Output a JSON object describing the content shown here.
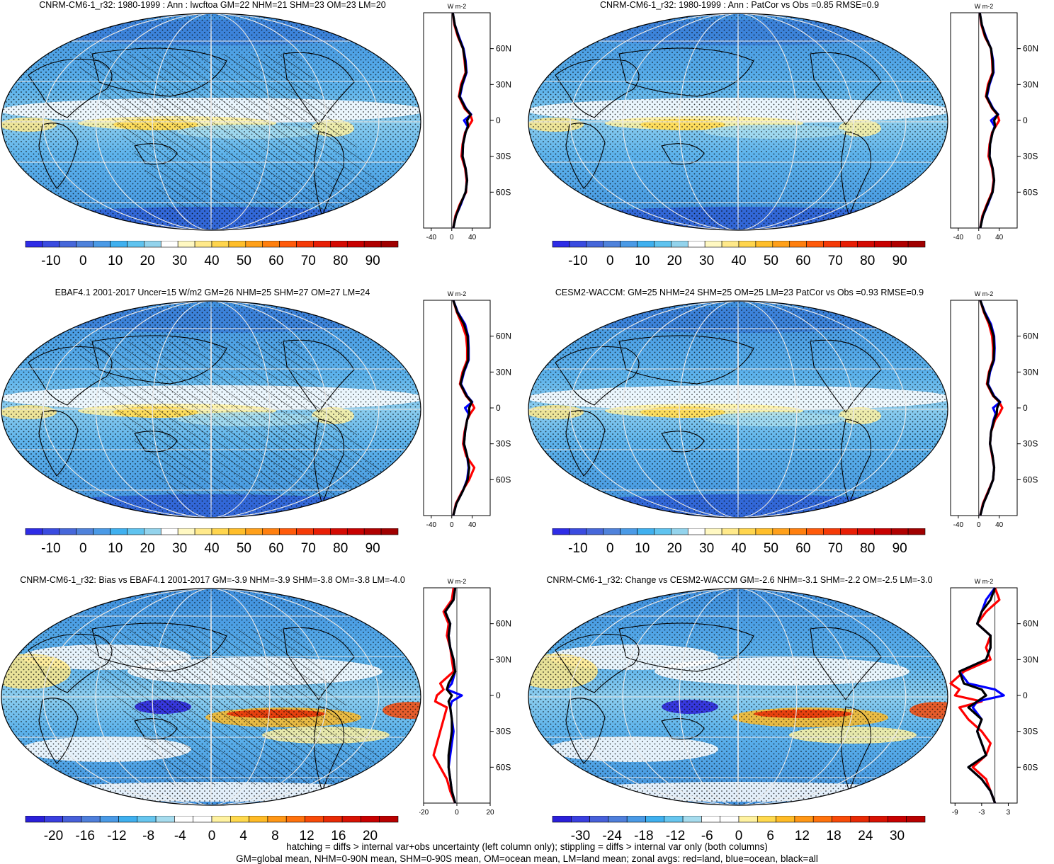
{
  "footer": {
    "line1": "hatching = diffs > internal var+obs uncertainty (left column only); stippling = diffs > internal var only (both columns)",
    "line2": "GM=global mean, NHM=0-90N mean, SHM=0-90S mean, OM=ocean mean, LM=land mean; zonal avgs: red=land, blue=ocean, black=all"
  },
  "colors": {
    "land": "#ff0000",
    "ocean": "#0000ff",
    "all": "#000000"
  },
  "chart_data": [
    {
      "type": "heatmap",
      "title": "CNRM-CM6-1_r32: 1980-1999 : Ann : lwcftoa GM=22 NHM=21 SHM=23 OM=23 LM=20",
      "colorbar_ticks": [
        "-10",
        "0",
        "10",
        "20",
        "30",
        "40",
        "50",
        "60",
        "70",
        "80",
        "90"
      ],
      "zonal_unit": "W m-2",
      "zonal_xticks": [
        "-40",
        "0",
        "40"
      ],
      "zonal_xlim": [
        -55,
        75
      ],
      "zonal_yticks": [
        "60N",
        "30N",
        "0",
        "30S",
        "60S"
      ],
      "hatching": true,
      "zonal_lat": [
        90,
        80,
        70,
        60,
        50,
        40,
        30,
        20,
        10,
        5,
        0,
        -5,
        -10,
        -20,
        -30,
        -40,
        -50,
        -60,
        -70,
        -80,
        -90
      ],
      "zonal_land": [
        2,
        5,
        12,
        22,
        25,
        27,
        18,
        14,
        25,
        36,
        40,
        33,
        26,
        21,
        19,
        26,
        29,
        28,
        16,
        7,
        3
      ],
      "zonal_ocean": [
        2,
        6,
        14,
        23,
        27,
        29,
        21,
        16,
        28,
        38,
        24,
        31,
        27,
        22,
        21,
        27,
        30,
        27,
        18,
        8,
        3
      ],
      "zonal_all": [
        2,
        6,
        13,
        22,
        26,
        28,
        20,
        15,
        27,
        37,
        30,
        32,
        27,
        22,
        21,
        27,
        30,
        27,
        17,
        8,
        3
      ]
    },
    {
      "type": "heatmap",
      "title": "CNRM-CM6-1_r32: 1980-1999 : Ann : PatCor vs Obs =0.85 RMSE=0.9",
      "colorbar_ticks": [
        "-10",
        "0",
        "10",
        "20",
        "30",
        "40",
        "50",
        "60",
        "70",
        "80",
        "90"
      ],
      "zonal_unit": "W m-2",
      "zonal_xticks": [
        "-40",
        "0",
        "40"
      ],
      "zonal_xlim": [
        -55,
        75
      ],
      "zonal_yticks": [
        "60N",
        "30N",
        "0",
        "30S",
        "60S"
      ],
      "hatching": false,
      "zonal_lat": [
        90,
        80,
        70,
        60,
        50,
        40,
        30,
        20,
        10,
        5,
        0,
        -5,
        -10,
        -20,
        -30,
        -40,
        -50,
        -60,
        -70,
        -80,
        -90
      ],
      "zonal_land": [
        2,
        5,
        12,
        24,
        26,
        27,
        18,
        14,
        26,
        36,
        40,
        33,
        26,
        21,
        19,
        26,
        29,
        26,
        16,
        7,
        3
      ],
      "zonal_ocean": [
        2,
        6,
        14,
        24,
        28,
        29,
        21,
        16,
        28,
        38,
        24,
        31,
        27,
        22,
        21,
        27,
        30,
        27,
        18,
        8,
        3
      ],
      "zonal_all": [
        2,
        6,
        13,
        24,
        27,
        28,
        20,
        15,
        27,
        37,
        30,
        32,
        27,
        22,
        21,
        27,
        30,
        27,
        17,
        8,
        3
      ]
    },
    {
      "type": "heatmap",
      "title": "EBAF4.1 2001-2017 Uncer=15 W/m2 GM=26 NHM=25 SHM=27 OM=27 LM=24",
      "colorbar_ticks": [
        "-10",
        "0",
        "10",
        "20",
        "30",
        "40",
        "50",
        "60",
        "70",
        "80",
        "90"
      ],
      "zonal_unit": "W m-2",
      "zonal_xticks": [
        "-40",
        "0",
        "40"
      ],
      "zonal_xlim": [
        -55,
        75
      ],
      "zonal_yticks": [
        "60N",
        "30N",
        "0",
        "30S",
        "60S"
      ],
      "hatching": true,
      "zonal_lat": [
        90,
        80,
        70,
        60,
        50,
        40,
        30,
        20,
        10,
        5,
        0,
        -5,
        -10,
        -20,
        -30,
        -40,
        -50,
        -60,
        -70,
        -80,
        -90
      ],
      "zonal_land": [
        3,
        10,
        20,
        28,
        30,
        30,
        21,
        16,
        28,
        38,
        44,
        36,
        30,
        25,
        22,
        28,
        44,
        34,
        20,
        8,
        3
      ],
      "zonal_ocean": [
        3,
        12,
        26,
        32,
        33,
        33,
        24,
        18,
        30,
        40,
        26,
        33,
        30,
        26,
        24,
        30,
        33,
        30,
        21,
        9,
        3
      ],
      "zonal_all": [
        3,
        11,
        24,
        31,
        32,
        32,
        23,
        17,
        29,
        39,
        34,
        34,
        30,
        26,
        24,
        30,
        34,
        31,
        21,
        9,
        3
      ]
    },
    {
      "type": "heatmap",
      "title": "CESM2-WACCM: GM=25 NHM=24 SHM=25 OM=25 LM=23 PatCor vs Obs =0.93 RMSE=0.9",
      "colorbar_ticks": [
        "-10",
        "0",
        "10",
        "20",
        "30",
        "40",
        "50",
        "60",
        "70",
        "80",
        "90"
      ],
      "zonal_unit": "W m-2",
      "zonal_xticks": [
        "-40",
        "0",
        "40"
      ],
      "zonal_xlim": [
        -55,
        75
      ],
      "zonal_yticks": [
        "60N",
        "30N",
        "0",
        "30S",
        "60S"
      ],
      "hatching": false,
      "zonal_lat": [
        90,
        80,
        70,
        60,
        50,
        40,
        30,
        20,
        10,
        5,
        0,
        -5,
        -10,
        -20,
        -30,
        -40,
        -50,
        -60,
        -70,
        -80,
        -90
      ],
      "zonal_land": [
        3,
        10,
        20,
        26,
        28,
        28,
        20,
        16,
        28,
        40,
        46,
        40,
        32,
        24,
        22,
        26,
        30,
        28,
        18,
        8,
        3
      ],
      "zonal_ocean": [
        3,
        12,
        24,
        30,
        31,
        30,
        22,
        18,
        30,
        42,
        28,
        33,
        29,
        24,
        22,
        27,
        30,
        28,
        19,
        9,
        3
      ],
      "zonal_all": [
        3,
        11,
        22,
        29,
        30,
        29,
        21,
        17,
        29,
        41,
        36,
        35,
        30,
        24,
        22,
        27,
        30,
        28,
        19,
        9,
        3
      ]
    },
    {
      "type": "heatmap",
      "title": "CNRM-CM6-1_r32: Bias vs EBAF4.1 2001-2017 GM=-3.9 NHM=-3.9 SHM=-3.8 OM=-3.8 LM=-4.0",
      "colorbar_ticks": [
        "-20",
        "-16",
        "-12",
        "-8",
        "-4",
        "0",
        "4",
        "8",
        "12",
        "16",
        "20"
      ],
      "zonal_unit": "W m-2",
      "zonal_xticks": [
        "-20",
        "0",
        "20"
      ],
      "zonal_xlim": [
        -20,
        20
      ],
      "zonal_yticks": [
        "60N",
        "30N",
        "0",
        "30S",
        "60S"
      ],
      "hatching": true,
      "zonal_lat": [
        90,
        80,
        70,
        60,
        50,
        40,
        30,
        20,
        10,
        5,
        0,
        -5,
        -10,
        -20,
        -30,
        -40,
        -50,
        -60,
        -70,
        -80,
        -90
      ],
      "zonal_land": [
        -2,
        -3,
        -8,
        -5,
        -6,
        -4,
        -3,
        -2,
        -10,
        -8,
        -12,
        -13,
        -6,
        -8,
        -10,
        -12,
        -14,
        -10,
        -6,
        -4,
        -1
      ],
      "zonal_ocean": [
        -1,
        -2,
        -7,
        -4,
        -5,
        -4,
        -2,
        -1,
        -3,
        -6,
        3,
        -3,
        -4,
        -3,
        -2,
        -3,
        -4,
        -5,
        -4,
        -3,
        -1
      ],
      "zonal_all": [
        -1,
        -2,
        -7,
        -4,
        -5,
        -4,
        -2,
        -1,
        -5,
        -6,
        -3,
        -5,
        -4,
        -3,
        -3,
        -4,
        -5,
        -5,
        -4,
        -3,
        -1
      ]
    },
    {
      "type": "heatmap",
      "title": "CNRM-CM6-1_r32: Change vs CESM2-WACCM GM=-2.6 NHM=-3.1 SHM=-2.2 OM=-2.5 LM=-3.0",
      "colorbar_ticks": [
        "-30",
        "-24",
        "-18",
        "-12",
        "-6",
        "0",
        "6",
        "12",
        "18",
        "24",
        "30"
      ],
      "zonal_unit": "W m-2",
      "zonal_xticks": [
        "-9",
        "-3",
        "3"
      ],
      "zonal_xlim": [
        -10,
        5
      ],
      "zonal_yticks": [
        "60N",
        "30N",
        "0",
        "30S",
        "60S"
      ],
      "hatching": false,
      "zonal_lat": [
        90,
        80,
        70,
        60,
        50,
        40,
        30,
        20,
        10,
        5,
        0,
        -5,
        -10,
        -20,
        -30,
        -40,
        -50,
        -60,
        -70,
        -80,
        -90
      ],
      "zonal_land": [
        0,
        1,
        -2,
        -4,
        -1,
        -2,
        -1,
        -7,
        -10,
        -8,
        -9,
        -3,
        -8,
        -6,
        -3,
        -1,
        -2,
        -5,
        -2,
        -1,
        0
      ],
      "zonal_ocean": [
        0,
        -2,
        -3,
        -4,
        -1,
        -1,
        -2,
        -8,
        -6,
        0,
        2,
        -4,
        -5,
        -3,
        -4,
        -3,
        -2,
        -6,
        -3,
        -1,
        0
      ],
      "zonal_all": [
        0,
        -1,
        -3,
        -4,
        -1,
        -1,
        -2,
        -8,
        -7,
        -3,
        -2,
        -4,
        -6,
        -3,
        -4,
        -3,
        -2,
        -6,
        -3,
        -1,
        0
      ]
    }
  ]
}
